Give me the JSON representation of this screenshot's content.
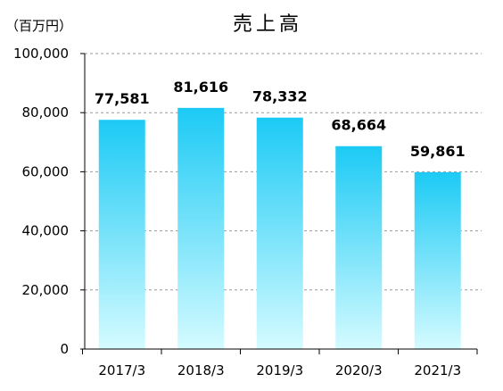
{
  "chart_data": {
    "type": "bar",
    "title": "売上高",
    "unit_label": "（百万円）",
    "categories": [
      "2017/3",
      "2018/3",
      "2019/3",
      "2020/3",
      "2021/3"
    ],
    "values": [
      77581,
      81616,
      78332,
      68664,
      59861
    ],
    "value_labels": [
      "77,581",
      "81,616",
      "78,332",
      "68,664",
      "59,861"
    ],
    "ylim": [
      0,
      100000
    ],
    "yticks": [
      0,
      20000,
      40000,
      60000,
      80000,
      100000
    ],
    "ytick_labels": [
      "0",
      "20,000",
      "40,000",
      "60,000",
      "80,000",
      "100,000"
    ],
    "grid": true,
    "colors": {
      "bar_top": "#1ccaf5",
      "bar_bottom": "#d4fbff",
      "grid": "#9a9a9a",
      "axis": "#000000"
    }
  }
}
